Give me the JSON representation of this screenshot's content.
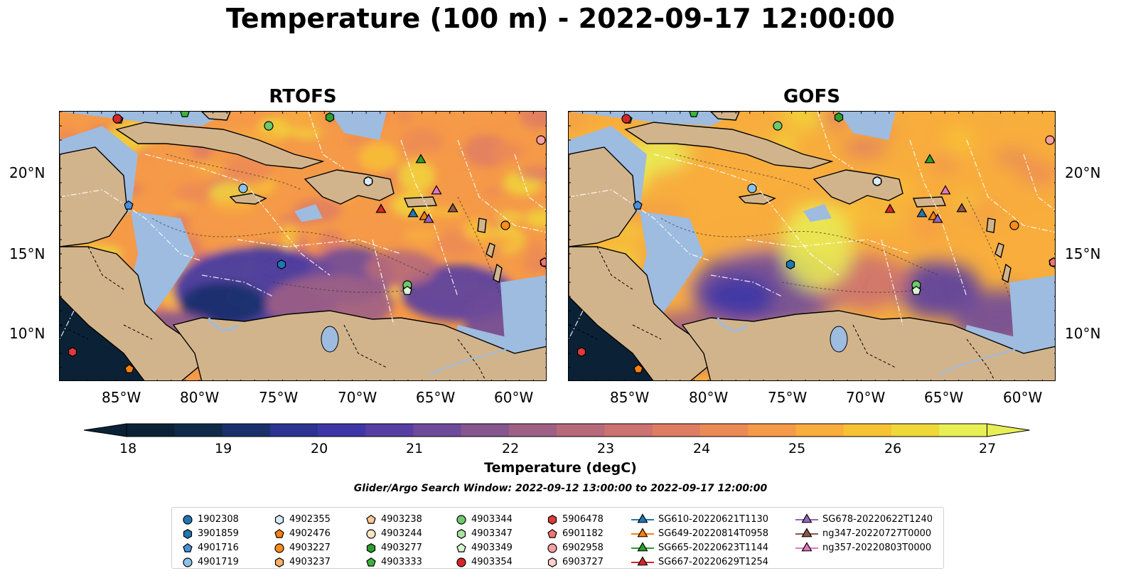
{
  "title": "Temperature (100 m) - 2022-09-17 12:00:00",
  "panels": [
    {
      "title": "RTOFS"
    },
    {
      "title": "GOFS"
    }
  ],
  "lon_ticks": [
    "85°W",
    "80°W",
    "75°W",
    "70°W",
    "65°W",
    "60°W"
  ],
  "lat_ticks": [
    "20°N",
    "15°N",
    "10°N"
  ],
  "colorbar": {
    "label": "Temperature (degC)",
    "ticks": [
      "18",
      "19",
      "20",
      "21",
      "22",
      "23",
      "24",
      "25",
      "26",
      "27"
    ]
  },
  "search_window": "Glider/Argo Search Window: 2022-09-12 13:00:00 to 2022-09-17 12:00:00",
  "legend": [
    {
      "label": "1902308",
      "marker": "circle",
      "color": "#1f77b4"
    },
    {
      "label": "3901859",
      "marker": "hexagon",
      "color": "#1f77b4"
    },
    {
      "label": "4901716",
      "marker": "pentagon",
      "color": "#4a90d9"
    },
    {
      "label": "4901719",
      "marker": "circle",
      "color": "#8cc1e8"
    },
    {
      "label": "4902355",
      "marker": "hexagon",
      "color": "#d6ebf7"
    },
    {
      "label": "4902476",
      "marker": "pentagon",
      "color": "#ff7f0e"
    },
    {
      "label": "4903227",
      "marker": "circle",
      "color": "#ff8c1a"
    },
    {
      "label": "4903237",
      "marker": "hexagon",
      "color": "#ffae66"
    },
    {
      "label": "4903238",
      "marker": "pentagon",
      "color": "#ffc994"
    },
    {
      "label": "4903244",
      "marker": "circle",
      "color": "#fde3c8"
    },
    {
      "label": "4903277",
      "marker": "hexagon",
      "color": "#2ca02c"
    },
    {
      "label": "4903333",
      "marker": "pentagon",
      "color": "#3cb33c"
    },
    {
      "label": "4903344",
      "marker": "circle",
      "color": "#6cc96c"
    },
    {
      "label": "4903347",
      "marker": "hexagon",
      "color": "#a8e4a0"
    },
    {
      "label": "4903349",
      "marker": "pentagon",
      "color": "#d8f4d2"
    },
    {
      "label": "4903354",
      "marker": "circle",
      "color": "#d62728"
    },
    {
      "label": "5906478",
      "marker": "hexagon",
      "color": "#e03a3a"
    },
    {
      "label": "6901182",
      "marker": "pentagon",
      "color": "#f07575"
    },
    {
      "label": "6902958",
      "marker": "circle",
      "color": "#f7a0a0"
    },
    {
      "label": "6903727",
      "marker": "hexagon",
      "color": "#fcd0cc"
    },
    {
      "label": "SG610-20220621T1130",
      "marker": "triangle",
      "color": "#1f77b4"
    },
    {
      "label": "SG649-20220814T0958",
      "marker": "triangle",
      "color": "#ff7f0e"
    },
    {
      "label": "SG665-20220623T1144",
      "marker": "triangle",
      "color": "#2ca02c"
    },
    {
      "label": "SG667-20220629T1254",
      "marker": "triangle",
      "color": "#d62728"
    },
    {
      "label": "SG678-20220622T1240",
      "marker": "triangle",
      "color": "#9467bd"
    },
    {
      "label": "ng347-20220727T0000",
      "marker": "triangle",
      "color": "#8c564b"
    },
    {
      "label": "ng357-20220803T0000",
      "marker": "triangle",
      "color": "#e377c2"
    }
  ],
  "colors": {
    "ocean_deep": "#0b2236",
    "land": "#d2b48c",
    "shelf_water": "#9ebbe0",
    "cmap": [
      "#0b2236",
      "#0f2a48",
      "#1a2f6b",
      "#2c3390",
      "#3e36a6",
      "#573ea2",
      "#6e4a9a",
      "#86568f",
      "#9e6185",
      "#b66a7a",
      "#cc7270",
      "#de7c64",
      "#ec8a55",
      "#f59a48",
      "#f8ad3d",
      "#f7c234",
      "#f0d83a",
      "#e8ef55"
    ]
  }
}
